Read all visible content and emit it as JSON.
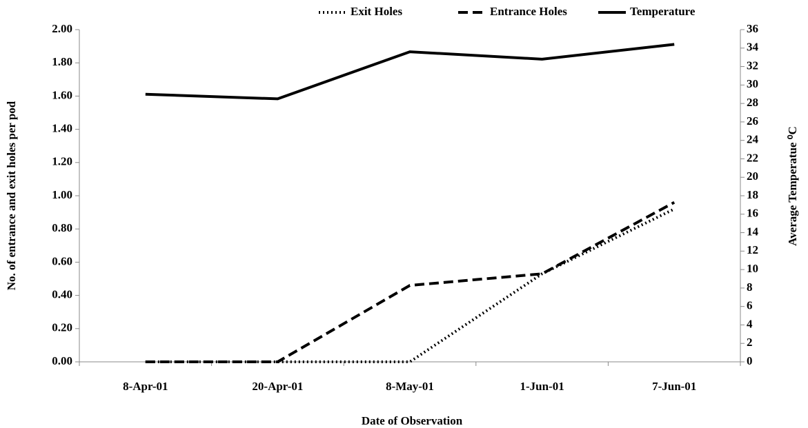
{
  "chart_data": {
    "type": "line",
    "x_label": "Date  of Observation",
    "y_label": "No. of entrance and exit holes per pod",
    "y2_label": "Average Temperatue ⁰C",
    "categories": [
      "8-Apr-01",
      "20-Apr-01",
      "8-May-01",
      "1-Jun-01",
      "7-Jun-01"
    ],
    "series": [
      {
        "name": "Exit Holes",
        "color": "#000000",
        "style": "dotted",
        "values": [
          0,
          0,
          0,
          0.53,
          0.92
        ]
      },
      {
        "name": "Entrance Holes",
        "color": "#000000",
        "style": "dashed",
        "values": [
          0,
          0,
          0.46,
          0.53,
          0.96
        ]
      },
      {
        "name": "Temperature",
        "color": "#000000",
        "style": "solid",
        "axis": "y2",
        "values": [
          29.0,
          28.5,
          33.6,
          32.8,
          34.4
        ]
      }
    ],
    "ylim": [
      0,
      2
    ],
    "yticks": [
      {
        "value": 0,
        "label": "0.00"
      },
      {
        "value": 0.2,
        "label": "0.20"
      },
      {
        "value": 0.4,
        "label": "0.40"
      },
      {
        "value": 0.6,
        "label": "0.60"
      },
      {
        "value": 0.8,
        "label": "0.80"
      },
      {
        "value": 1,
        "label": "1.00"
      },
      {
        "value": 1.2,
        "label": "1.20"
      },
      {
        "value": 1.4,
        "label": "1.40"
      },
      {
        "value": 1.6,
        "label": "1.60"
      },
      {
        "value": 1.8,
        "label": "1.80"
      },
      {
        "value": 2,
        "label": "2.00"
      }
    ],
    "y2lim": [
      0,
      36
    ],
    "y2ticks": [
      0,
      2,
      4,
      6,
      8,
      10,
      12,
      14,
      16,
      18,
      20,
      22,
      24,
      26,
      28,
      30,
      32,
      34,
      36
    ],
    "legend": "top"
  }
}
